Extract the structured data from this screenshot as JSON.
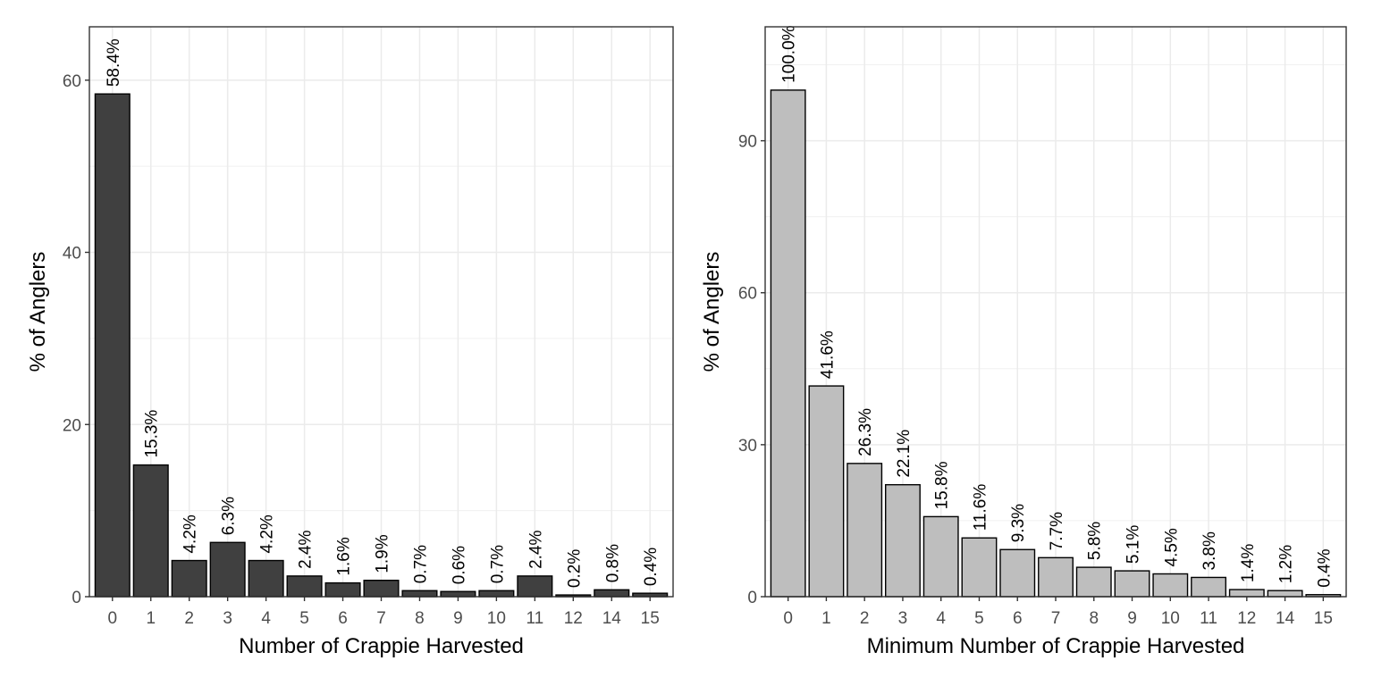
{
  "chart_data": [
    {
      "type": "bar",
      "title": "",
      "xlabel": "Number of Crappie Harvested",
      "ylabel": "% of Anglers",
      "categories": [
        "0",
        "1",
        "2",
        "3",
        "4",
        "5",
        "6",
        "7",
        "8",
        "9",
        "10",
        "11",
        "12",
        "14",
        "15"
      ],
      "values": [
        58.4,
        15.3,
        4.2,
        6.3,
        4.2,
        2.4,
        1.6,
        1.9,
        0.7,
        0.6,
        0.7,
        2.4,
        0.2,
        0.8,
        0.4
      ],
      "labels": [
        "58.4%",
        "15.3%",
        "4.2%",
        "6.3%",
        "4.2%",
        "2.4%",
        "1.6%",
        "1.9%",
        "0.7%",
        "0.6%",
        "0.7%",
        "2.4%",
        "0.2%",
        "0.8%",
        "0.4%"
      ],
      "yticks": [
        0,
        20,
        40,
        60
      ],
      "ylim": [
        0,
        66.2
      ],
      "bar_color": "#404040",
      "grid": true
    },
    {
      "type": "bar",
      "title": "",
      "xlabel": "Minimum Number of Crappie Harvested",
      "ylabel": "% of Anglers",
      "categories": [
        "0",
        "1",
        "2",
        "3",
        "4",
        "5",
        "6",
        "7",
        "8",
        "9",
        "10",
        "11",
        "12",
        "14",
        "15"
      ],
      "values": [
        100.0,
        41.6,
        26.3,
        22.1,
        15.8,
        11.6,
        9.3,
        7.7,
        5.8,
        5.1,
        4.5,
        3.8,
        1.4,
        1.2,
        0.4
      ],
      "labels": [
        "100.0%",
        "41.6%",
        "26.3%",
        "22.1%",
        "15.8%",
        "11.6%",
        "9.3%",
        "7.7%",
        "5.8%",
        "5.1%",
        "4.5%",
        "3.8%",
        "1.4%",
        "1.2%",
        "0.4%"
      ],
      "yticks": [
        0,
        30,
        60,
        90
      ],
      "ylim": [
        0,
        112.5
      ],
      "bar_color": "#bebebe",
      "grid": true
    }
  ]
}
